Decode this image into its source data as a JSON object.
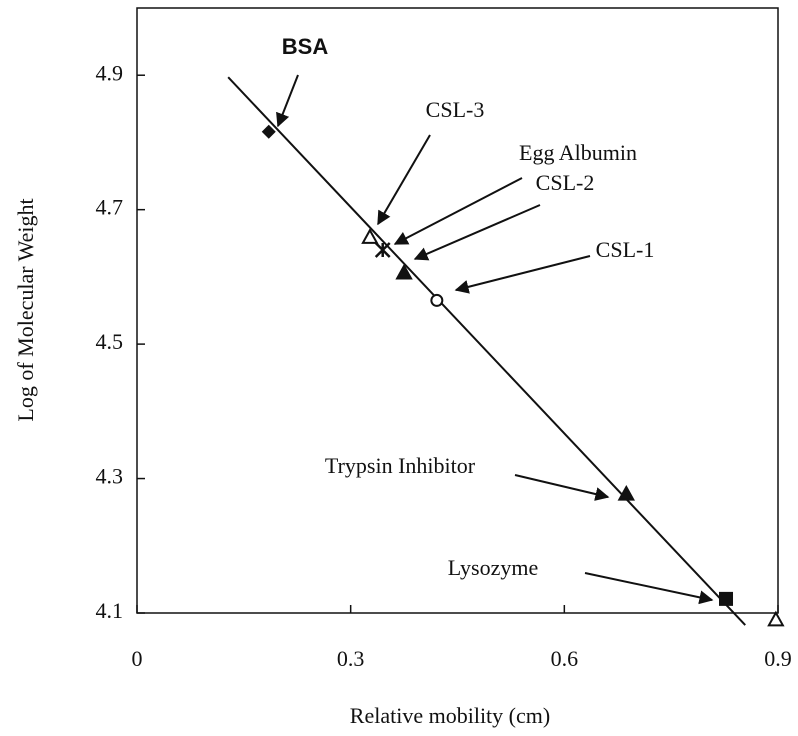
{
  "chart_data": {
    "type": "scatter",
    "x_label": "Relative mobility (cm)",
    "y_label": "Log of Molecular Weight",
    "xlim": [
      0,
      0.9
    ],
    "ylim": [
      4.1,
      5.0
    ],
    "xticks": [
      0,
      0.3,
      0.6,
      0.9
    ],
    "yticks": [
      4.1,
      4.3,
      4.5,
      4.7,
      4.9
    ],
    "color": "#111111",
    "x": [
      0.185,
      0.327,
      0.345,
      0.375,
      0.421,
      0.687,
      0.827,
      0.897
    ],
    "values": [
      4.816,
      4.659,
      4.64,
      4.606,
      4.565,
      4.277,
      4.121,
      4.09
    ],
    "markers": [
      "diamond-filled",
      "triangle-open",
      "star",
      "triangle-filled",
      "circle-open",
      "triangle-filled",
      "square-filled",
      "triangle-open"
    ],
    "labels": [
      "BSA",
      "CSL-3",
      "Egg Albumin",
      "CSL-2",
      "CSL-1",
      "Trypsin Inhibitor",
      "Lysozyme",
      null
    ],
    "fit_line": {
      "x": [
        0.128,
        0.854
      ],
      "y": [
        4.897,
        4.082
      ]
    }
  }
}
